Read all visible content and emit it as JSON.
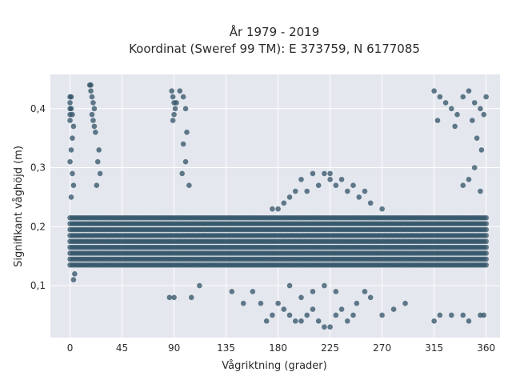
{
  "chart_data": {
    "type": "scatter",
    "title_line1": "År 1979 - 2019",
    "title_line2": "Koordinat (Sweref 99 TM): E 373759, N 6177085",
    "xlabel": "Vågriktning (grader)",
    "ylabel": "Signifikant våghöjd (m)",
    "xlim": [
      -17,
      372
    ],
    "ylim": [
      0.012,
      0.458
    ],
    "x_ticks": [
      0,
      45,
      90,
      135,
      180,
      225,
      270,
      315,
      360
    ],
    "x_tick_labels": [
      "0",
      "45",
      "90",
      "135",
      "180",
      "225",
      "270",
      "315",
      "360"
    ],
    "y_ticks": [
      0.1,
      0.2,
      0.3,
      0.4
    ],
    "y_tick_labels": [
      "0,1",
      "0,2",
      "0,3",
      "0,4"
    ],
    "grid": true,
    "background": "#e5e7ee",
    "marker_color": "#2f5266",
    "point_clusters": [
      {
        "x_range": [
          0,
          360
        ],
        "y_range": [
          0.13,
          0.22
        ],
        "density": "very high",
        "note": "dense main band"
      },
      {
        "x_range": [
          0,
          5
        ],
        "y_range": [
          0.37,
          0.42
        ],
        "density": "high"
      },
      {
        "x_range": [
          18,
          22
        ],
        "y_range": [
          0.37,
          0.44
        ],
        "density": "high"
      },
      {
        "x_range": [
          87,
          92
        ],
        "y_range": [
          0.38,
          0.43
        ],
        "density": "high"
      },
      {
        "x_range": [
          315,
          360
        ],
        "y_range": [
          0.37,
          0.43
        ],
        "density": "high"
      },
      {
        "x_range": [
          170,
          260
        ],
        "y_range": [
          0.22,
          0.29
        ],
        "density": "high",
        "note": "upper hump centered near 220"
      },
      {
        "x_range": [
          175,
          250
        ],
        "y_range": [
          0.03,
          0.12
        ],
        "density": "low"
      }
    ],
    "points": [
      [
        0,
        0.42
      ],
      [
        0,
        0.41
      ],
      [
        0,
        0.4
      ],
      [
        0,
        0.39
      ],
      [
        0,
        0.38
      ],
      [
        1,
        0.42
      ],
      [
        1,
        0.4
      ],
      [
        2,
        0.39
      ],
      [
        3,
        0.37
      ],
      [
        2,
        0.35
      ],
      [
        1,
        0.33
      ],
      [
        0,
        0.31
      ],
      [
        2,
        0.29
      ],
      [
        3,
        0.27
      ],
      [
        1,
        0.25
      ],
      [
        4,
        0.12
      ],
      [
        3,
        0.11
      ],
      [
        17,
        0.44
      ],
      [
        18,
        0.43
      ],
      [
        19,
        0.42
      ],
      [
        20,
        0.41
      ],
      [
        21,
        0.4
      ],
      [
        19,
        0.39
      ],
      [
        20,
        0.38
      ],
      [
        21,
        0.37
      ],
      [
        22,
        0.36
      ],
      [
        18,
        0.44
      ],
      [
        25,
        0.33
      ],
      [
        24,
        0.31
      ],
      [
        26,
        0.29
      ],
      [
        23,
        0.27
      ],
      [
        88,
        0.43
      ],
      [
        89,
        0.42
      ],
      [
        90,
        0.41
      ],
      [
        91,
        0.4
      ],
      [
        90,
        0.39
      ],
      [
        89,
        0.38
      ],
      [
        92,
        0.41
      ],
      [
        95,
        0.43
      ],
      [
        98,
        0.42
      ],
      [
        100,
        0.4
      ],
      [
        101,
        0.36
      ],
      [
        98,
        0.34
      ],
      [
        100,
        0.31
      ],
      [
        97,
        0.29
      ],
      [
        103,
        0.27
      ],
      [
        86,
        0.08
      ],
      [
        90,
        0.08
      ],
      [
        105,
        0.08
      ],
      [
        112,
        0.1
      ],
      [
        140,
        0.09
      ],
      [
        150,
        0.07
      ],
      [
        165,
        0.07
      ],
      [
        158,
        0.09
      ],
      [
        315,
        0.43
      ],
      [
        320,
        0.42
      ],
      [
        325,
        0.41
      ],
      [
        330,
        0.4
      ],
      [
        335,
        0.39
      ],
      [
        340,
        0.42
      ],
      [
        345,
        0.43
      ],
      [
        350,
        0.41
      ],
      [
        355,
        0.4
      ],
      [
        360,
        0.42
      ],
      [
        318,
        0.38
      ],
      [
        333,
        0.37
      ],
      [
        348,
        0.38
      ],
      [
        358,
        0.39
      ],
      [
        352,
        0.35
      ],
      [
        356,
        0.33
      ],
      [
        350,
        0.3
      ],
      [
        345,
        0.28
      ],
      [
        340,
        0.27
      ],
      [
        355,
        0.26
      ],
      [
        320,
        0.05
      ],
      [
        330,
        0.05
      ],
      [
        340,
        0.05
      ],
      [
        345,
        0.04
      ],
      [
        355,
        0.05
      ],
      [
        358,
        0.05
      ],
      [
        315,
        0.04
      ],
      [
        185,
        0.06
      ],
      [
        190,
        0.05
      ],
      [
        195,
        0.04
      ],
      [
        200,
        0.04
      ],
      [
        205,
        0.05
      ],
      [
        210,
        0.06
      ],
      [
        215,
        0.04
      ],
      [
        220,
        0.03
      ],
      [
        225,
        0.03
      ],
      [
        230,
        0.05
      ],
      [
        235,
        0.06
      ],
      [
        240,
        0.04
      ],
      [
        245,
        0.05
      ],
      [
        248,
        0.07
      ],
      [
        200,
        0.08
      ],
      [
        210,
        0.09
      ],
      [
        220,
        0.1
      ],
      [
        230,
        0.09
      ],
      [
        190,
        0.1
      ],
      [
        180,
        0.07
      ],
      [
        175,
        0.05
      ],
      [
        270,
        0.05
      ],
      [
        280,
        0.06
      ],
      [
        290,
        0.07
      ],
      [
        260,
        0.08
      ],
      [
        255,
        0.09
      ],
      [
        170,
        0.04
      ],
      [
        200,
        0.28
      ],
      [
        210,
        0.29
      ],
      [
        220,
        0.29
      ],
      [
        225,
        0.28
      ],
      [
        230,
        0.27
      ],
      [
        215,
        0.27
      ],
      [
        205,
        0.26
      ],
      [
        240,
        0.26
      ],
      [
        250,
        0.25
      ],
      [
        190,
        0.25
      ],
      [
        185,
        0.24
      ],
      [
        260,
        0.24
      ],
      [
        270,
        0.23
      ],
      [
        180,
        0.23
      ],
      [
        175,
        0.23
      ],
      [
        245,
        0.27
      ],
      [
        255,
        0.26
      ],
      [
        235,
        0.28
      ],
      [
        195,
        0.26
      ],
      [
        225,
        0.29
      ]
    ],
    "band_samples": {
      "x_start": 0,
      "x_end": 360,
      "x_step": 2,
      "y_min": 0.135,
      "y_max": 0.215,
      "y_step": 0.01
    }
  }
}
